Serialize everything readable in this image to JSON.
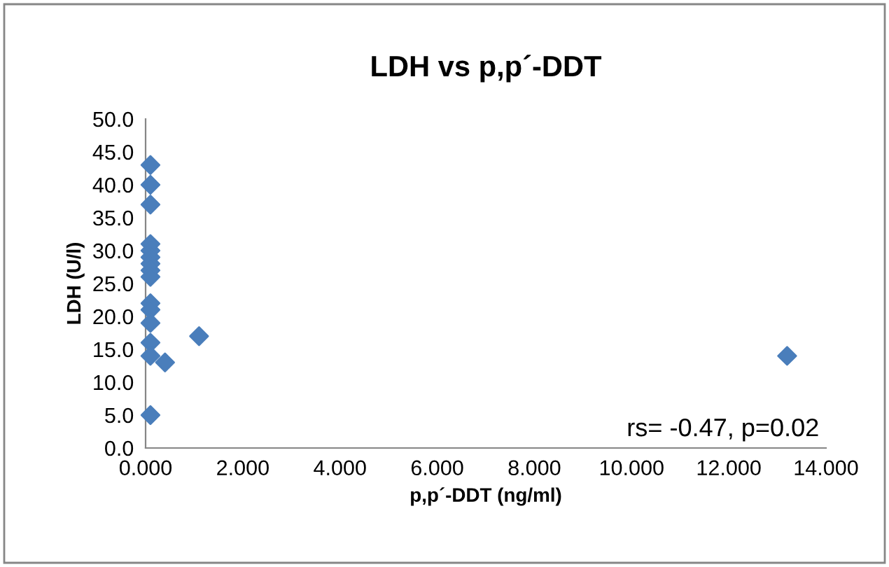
{
  "chart_data": {
    "type": "scatter",
    "title": "LDH vs p,p´-DDT",
    "xlabel": "p,p´-DDT (ng/ml)",
    "ylabel": "LDH (U/l)",
    "x": [
      0.1,
      0.1,
      0.1,
      0.1,
      0.1,
      0.1,
      0.1,
      0.1,
      0.1,
      0.1,
      0.1,
      0.1,
      0.1,
      0.1,
      0.1,
      0.4,
      1.1,
      13.2
    ],
    "values": [
      43,
      40,
      37,
      31,
      30,
      29,
      28,
      27,
      26,
      22,
      21,
      19,
      16,
      14,
      5,
      13,
      17,
      14
    ],
    "color": "#4a7ebb",
    "marker": "diamond",
    "xlim": [
      0,
      14
    ],
    "xticks": [
      {
        "value": 0,
        "label": "0.000"
      },
      {
        "value": 2,
        "label": "2.000"
      },
      {
        "value": 4,
        "label": "4.000"
      },
      {
        "value": 6,
        "label": "6.000"
      },
      {
        "value": 8,
        "label": "8.000"
      },
      {
        "value": 10,
        "label": "10.000"
      },
      {
        "value": 12,
        "label": "12.000"
      },
      {
        "value": 14,
        "label": "14.000"
      }
    ],
    "ylim": [
      0,
      50
    ],
    "yticks": [
      {
        "value": 0,
        "label": "0.0"
      },
      {
        "value": 5,
        "label": "5.0"
      },
      {
        "value": 10,
        "label": "10.0"
      },
      {
        "value": 15,
        "label": "15.0"
      },
      {
        "value": 20,
        "label": "20.0"
      },
      {
        "value": 25,
        "label": "25.0"
      },
      {
        "value": 30,
        "label": "30.0"
      },
      {
        "value": 35,
        "label": "35.0"
      },
      {
        "value": 40,
        "label": "40.0"
      },
      {
        "value": 45,
        "label": "45.0"
      },
      {
        "value": 50,
        "label": "50.0"
      }
    ],
    "annotations": [
      "rs= -0.47, p=0.02"
    ],
    "grid": false,
    "legend": false
  }
}
